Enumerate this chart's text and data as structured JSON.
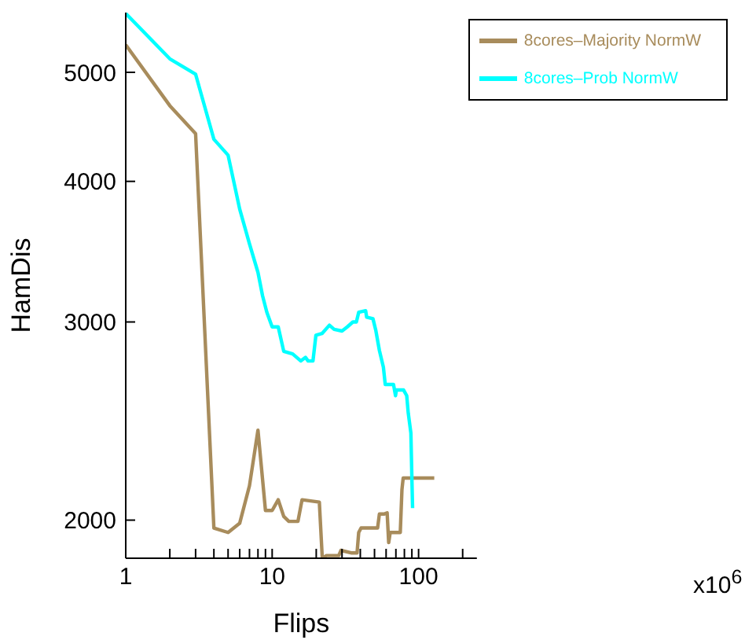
{
  "chart_data": {
    "type": "line",
    "xlabel": "Flips",
    "ylabel": "HamDis",
    "log": "xy",
    "grid": false,
    "legend": "top right",
    "marker": "none",
    "line_style": "solid",
    "xlim": [
      1,
      250
    ],
    "ylim": [
      1850,
      5650
    ],
    "xticks": [
      1,
      {
        "value": 2,
        "label": null
      },
      {
        "value": 3,
        "label": null
      },
      {
        "value": 4,
        "label": null
      },
      {
        "value": 5,
        "label": null
      },
      {
        "value": 6,
        "label": null
      },
      {
        "value": 7,
        "label": null
      },
      {
        "value": 8,
        "label": null
      },
      {
        "value": 9,
        "label": null
      },
      10,
      {
        "value": 20,
        "label": null
      },
      {
        "value": 30,
        "label": null
      },
      {
        "value": 40,
        "label": null
      },
      {
        "value": 50,
        "label": null
      },
      {
        "value": 60,
        "label": null
      },
      {
        "value": 70,
        "label": null
      },
      {
        "value": 80,
        "label": null
      },
      {
        "value": 90,
        "label": null
      },
      100,
      {
        "value": 200,
        "label": null
      }
    ],
    "yticks": [
      2000,
      3000,
      4000,
      5000
    ],
    "annotations": [
      "x10$^{6}$"
    ],
    "series": [
      {
        "name": "8cores–Majority NormW",
        "color": "#a88c5c",
        "x": [
          1,
          2,
          3,
          4,
          5,
          6,
          7,
          8,
          9,
          10,
          11,
          12,
          13,
          15,
          16,
          21,
          22,
          23.5,
          28.5,
          29.5,
          35,
          38,
          39,
          40.5,
          52.5,
          54,
          58,
          61,
          62.5,
          64,
          75,
          77,
          78.5,
          128
        ],
        "values": [
          5290,
          4670,
          4410,
          1968,
          1950,
          1987,
          2146,
          2404,
          2040,
          2040,
          2085,
          2015,
          1995,
          1995,
          2085,
          2075,
          1850,
          1860,
          1860,
          1880,
          1870,
          1870,
          1950,
          1968,
          1968,
          2025,
          2025,
          2030,
          1910,
          1950,
          1950,
          2130,
          2180,
          2180
        ]
      },
      {
        "name": "8cores–Prob NormW",
        "color": "#00ffff",
        "x": [
          1,
          2,
          3,
          4,
          5,
          6,
          7,
          8,
          8.6,
          9.2,
          10,
          11,
          12,
          13.8,
          15.7,
          16.9,
          17.6,
          19,
          19.9,
          21.9,
          24.6,
          26.5,
          30,
          32.6,
          35.6,
          37.6,
          39,
          43.5,
          44.2,
          48.8,
          51,
          54,
          57.5,
          59.2,
          67.4,
          69.6,
          70.5,
          79,
          83,
          85,
          88.6,
          90,
          91
        ],
        "values": [
          5640,
          5140,
          4980,
          4360,
          4220,
          3780,
          3520,
          3320,
          3165,
          3060,
          2970,
          2970,
          2825,
          2810,
          2770,
          2790,
          2770,
          2770,
          2920,
          2930,
          2980,
          2955,
          2945,
          2970,
          3000,
          3000,
          3060,
          3070,
          3030,
          3020,
          2950,
          2830,
          2735,
          2640,
          2640,
          2580,
          2610,
          2610,
          2580,
          2490,
          2390,
          2180,
          2050
        ]
      }
    ]
  }
}
